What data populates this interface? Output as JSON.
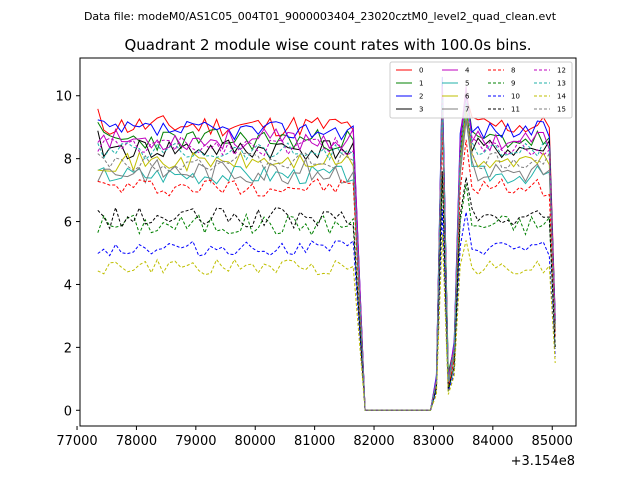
{
  "suptitle": "Data file: modeM0/AS1C05_004T01_9000003404_23020cztM0_level2_quad_clean.evt",
  "chart_data": {
    "type": "line",
    "title": "Quadrant 2 module wise count rates with 100.0s bins.",
    "xlabel": "",
    "ylabel": "",
    "x_offset_label": "+3.154e8",
    "xlim": [
      77050,
      85400
    ],
    "ylim": [
      -0.5,
      11.2
    ],
    "xticks": [
      77000,
      78000,
      79000,
      80000,
      81000,
      82000,
      83000,
      84000,
      85000
    ],
    "xtick_labels": [
      "77000",
      "78000",
      "79000",
      "80000",
      "81000",
      "82000",
      "83000",
      "84000",
      "85000"
    ],
    "yticks": [
      0,
      2,
      4,
      6,
      8,
      10
    ],
    "ytick_labels": [
      "0",
      "2",
      "4",
      "6",
      "8",
      "10"
    ],
    "legend_position": "top-right",
    "legend_columns": 4,
    "segments": {
      "first_start": 77350,
      "first_end": 81650,
      "gap_start": 81850,
      "gap_end": 82950,
      "burst_x": [
        83050,
        83150,
        83250,
        83350,
        83450,
        83550
      ],
      "second_start": 83650,
      "second_end": 85050,
      "step": 100
    },
    "series": [
      {
        "name": "0",
        "color": "#ff0000",
        "dash": "solid",
        "level": 9.05,
        "amp": 0.35,
        "seed": 11,
        "burst": [
          1.0,
          10.2,
          1.1,
          2.0,
          8.5,
          10.0
        ]
      },
      {
        "name": "1",
        "color": "#008000",
        "dash": "solid",
        "level": 8.6,
        "amp": 0.35,
        "seed": 23,
        "burst": [
          1.0,
          10.4,
          1.2,
          2.0,
          8.2,
          10.2
        ]
      },
      {
        "name": "2",
        "color": "#0000ff",
        "dash": "solid",
        "level": 8.9,
        "amp": 0.3,
        "seed": 37,
        "burst": [
          1.1,
          10.6,
          0.9,
          2.2,
          8.8,
          10.0
        ]
      },
      {
        "name": "3",
        "color": "#000000",
        "dash": "solid",
        "level": 8.3,
        "amp": 0.35,
        "seed": 41,
        "burst": [
          0.9,
          10.0,
          0.8,
          1.8,
          8.0,
          9.6
        ]
      },
      {
        "name": "4",
        "color": "#bf00bf",
        "dash": "solid",
        "level": 8.6,
        "amp": 0.35,
        "seed": 53,
        "burst": [
          1.0,
          10.3,
          1.0,
          2.1,
          8.6,
          10.3
        ]
      },
      {
        "name": "5",
        "color": "#20b2aa",
        "dash": "solid",
        "level": 7.5,
        "amp": 0.3,
        "seed": 67,
        "burst": [
          0.9,
          9.6,
          0.8,
          1.9,
          7.8,
          9.3
        ]
      },
      {
        "name": "6",
        "color": "#bfbf00",
        "dash": "solid",
        "level": 7.9,
        "amp": 0.3,
        "seed": 71,
        "burst": [
          0.9,
          9.8,
          0.9,
          1.9,
          7.9,
          9.5
        ]
      },
      {
        "name": "7",
        "color": "#7f7f7f",
        "dash": "solid",
        "level": 7.6,
        "amp": 0.4,
        "seed": 83,
        "burst": [
          0.8,
          9.5,
          0.8,
          1.7,
          7.5,
          9.2
        ]
      },
      {
        "name": "8",
        "color": "#ff0000",
        "dash": "dashed",
        "level": 7.1,
        "amp": 0.3,
        "seed": 97,
        "burst": [
          0.8,
          8.8,
          0.7,
          1.6,
          7.0,
          8.6
        ]
      },
      {
        "name": "9",
        "color": "#008000",
        "dash": "dashed",
        "level": 5.9,
        "amp": 0.35,
        "seed": 101,
        "burst": [
          0.7,
          7.4,
          0.6,
          1.4,
          6.0,
          7.2
        ]
      },
      {
        "name": "10",
        "color": "#0000ff",
        "dash": "dashed",
        "level": 5.15,
        "amp": 0.25,
        "seed": 113,
        "burst": [
          0.6,
          6.4,
          0.6,
          1.2,
          5.2,
          6.3
        ]
      },
      {
        "name": "11",
        "color": "#000000",
        "dash": "dashed",
        "level": 6.1,
        "amp": 0.35,
        "seed": 127,
        "burst": [
          0.7,
          7.6,
          0.7,
          1.4,
          6.2,
          7.4
        ]
      },
      {
        "name": "12",
        "color": "#bf00bf",
        "dash": "dashed",
        "level": 8.4,
        "amp": 0.3,
        "seed": 131,
        "burst": [
          1.0,
          10.1,
          1.0,
          2.0,
          8.4,
          10.0
        ]
      },
      {
        "name": "13",
        "color": "#20b2aa",
        "dash": "dashed",
        "level": 8.25,
        "amp": 0.3,
        "seed": 139,
        "burst": [
          0.9,
          9.9,
          0.9,
          1.9,
          8.2,
          9.8
        ]
      },
      {
        "name": "14",
        "color": "#bfbf00",
        "dash": "dashed",
        "level": 4.55,
        "amp": 0.25,
        "seed": 149,
        "burst": [
          0.5,
          5.6,
          0.5,
          1.1,
          4.6,
          5.4
        ]
      },
      {
        "name": "15",
        "color": "#7f7f7f",
        "dash": "dashed",
        "level": 7.9,
        "amp": 0.3,
        "seed": 151,
        "burst": [
          0.9,
          9.6,
          0.9,
          1.8,
          7.8,
          9.4
        ]
      }
    ]
  }
}
